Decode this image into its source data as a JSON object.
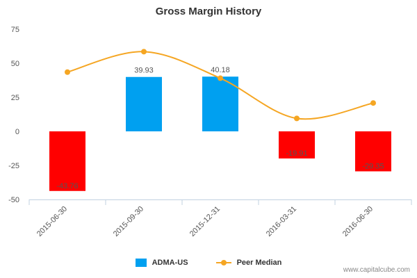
{
  "chart_data": {
    "type": "bar",
    "title": "Gross Margin History",
    "categories": [
      "2015-06-30",
      "2015-09-30",
      "2015-12-31",
      "2016-03-31",
      "2016-06-30"
    ],
    "series": [
      {
        "name": "ADMA-US",
        "type": "bar",
        "values": [
          -43.76,
          39.93,
          40.18,
          -19.91,
          -29.35
        ],
        "data_labels": [
          "-43.76",
          "39.93",
          "40.18",
          "-19.91",
          "-29.35"
        ]
      },
      {
        "name": "Peer Median",
        "type": "line",
        "values": [
          43.5,
          58.5,
          39.0,
          9.5,
          20.8
        ]
      }
    ],
    "ylim": [
      -50,
      75
    ],
    "yticks": [
      "75",
      "50",
      "25",
      "0",
      "-25",
      "-50"
    ],
    "ytick_values": [
      75,
      50,
      25,
      0,
      -25,
      -50
    ],
    "legend": "bottom-center",
    "grid": false
  },
  "colors": {
    "positive": "#00a0f0",
    "negative": "#ff0000",
    "median": "#f5a623",
    "axis": "#c0d0e0",
    "text": "#555555"
  },
  "legend": {
    "items": [
      "ADMA-US",
      "Peer Median"
    ]
  },
  "credit": "www.capitalcube.com"
}
